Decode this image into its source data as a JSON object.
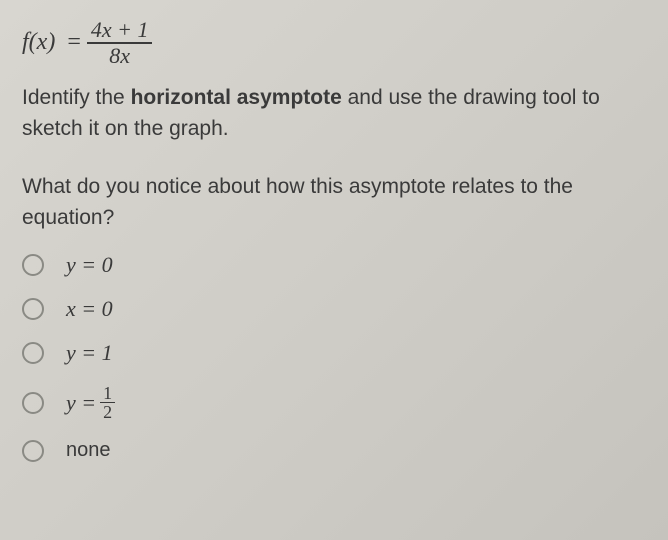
{
  "equation": {
    "lhs": "f(x)",
    "eq": "=",
    "numerator": "4x + 1",
    "denominator": "8x"
  },
  "instruction": {
    "pre": "Identify the ",
    "bold": "horizontal asymptote",
    "post": " and use the drawing tool to sketch it on the graph."
  },
  "question": "What do you notice about how this asymptote relates to the equation?",
  "options": {
    "a": "y = 0",
    "b": "x = 0",
    "c": "y = 1",
    "d_prefix": "y = ",
    "d_num": "1",
    "d_den": "2",
    "e": "none"
  },
  "colors": {
    "text": "#3a3a3a",
    "radio_border": "#8a8a84"
  }
}
